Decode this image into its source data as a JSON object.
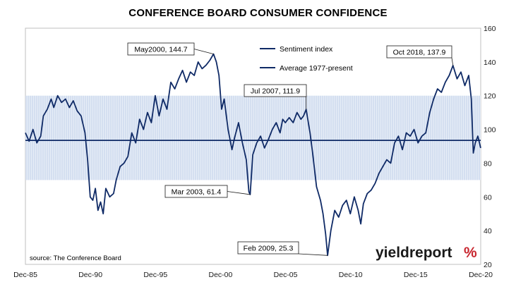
{
  "chart_data": {
    "type": "line",
    "title": "CONFERENCE BOARD CONSUMER CONFIDENCE",
    "x_tick_labels": [
      "Dec-85",
      "Dec-90",
      "Dec-95",
      "Dec-00",
      "Dec-05",
      "Dec-10",
      "Dec-15",
      "Dec-20"
    ],
    "y_tick_labels": [
      "20",
      "40",
      "60",
      "80",
      "100",
      "120",
      "140",
      "160"
    ],
    "xlim": [
      1985.92,
      2020.92
    ],
    "ylim": [
      20,
      160
    ],
    "grid": false,
    "legend_position": "top-center",
    "series": [
      {
        "name": "Sentiment index",
        "color": "#0f2a66",
        "x": [
          1985.92,
          1986.2,
          1986.5,
          1986.8,
          1987.1,
          1987.3,
          1987.6,
          1987.9,
          1988.1,
          1988.4,
          1988.7,
          1989.0,
          1989.3,
          1989.6,
          1989.9,
          1990.2,
          1990.5,
          1990.7,
          1990.9,
          1991.1,
          1991.3,
          1991.5,
          1991.7,
          1991.9,
          1992.1,
          1992.4,
          1992.7,
          1992.9,
          1993.2,
          1993.5,
          1993.8,
          1994.1,
          1994.4,
          1994.7,
          1995.0,
          1995.3,
          1995.6,
          1995.9,
          1996.2,
          1996.5,
          1996.8,
          1997.1,
          1997.4,
          1997.7,
          1998.0,
          1998.3,
          1998.6,
          1998.9,
          1999.2,
          1999.5,
          1999.8,
          2000.1,
          2000.38,
          2000.6,
          2000.8,
          2001.0,
          2001.2,
          2001.5,
          2001.8,
          2002.0,
          2002.3,
          2002.6,
          2002.9,
          2003.1,
          2003.2,
          2003.4,
          2003.7,
          2004.0,
          2004.3,
          2004.6,
          2004.9,
          2005.2,
          2005.5,
          2005.7,
          2005.9,
          2006.2,
          2006.5,
          2006.8,
          2007.1,
          2007.3,
          2007.5,
          2007.8,
          2008.0,
          2008.3,
          2008.6,
          2008.8,
          2009.0,
          2009.15,
          2009.4,
          2009.7,
          2010.0,
          2010.3,
          2010.6,
          2010.9,
          2011.2,
          2011.5,
          2011.7,
          2011.9,
          2012.2,
          2012.5,
          2012.8,
          2013.1,
          2013.4,
          2013.7,
          2014.0,
          2014.3,
          2014.6,
          2014.9,
          2015.2,
          2015.5,
          2015.8,
          2016.1,
          2016.4,
          2016.7,
          2017.0,
          2017.3,
          2017.6,
          2017.9,
          2018.2,
          2018.5,
          2018.79,
          2019.1,
          2019.4,
          2019.7,
          2020.0,
          2020.2,
          2020.35,
          2020.5,
          2020.7,
          2020.92
        ],
        "values": [
          98,
          93,
          100,
          92,
          96,
          108,
          112,
          118,
          113,
          120,
          116,
          118,
          113,
          117,
          111,
          108,
          98,
          82,
          60,
          58,
          65,
          52,
          57,
          50,
          65,
          60,
          62,
          70,
          78,
          80,
          84,
          98,
          92,
          106,
          100,
          110,
          104,
          120,
          108,
          118,
          112,
          128,
          124,
          130,
          135,
          128,
          134,
          132,
          140,
          136,
          138,
          141,
          144.7,
          140,
          132,
          112,
          118,
          100,
          88,
          95,
          104,
          92,
          82,
          63,
          61.4,
          85,
          92,
          96,
          89,
          94,
          100,
          104,
          98,
          106,
          104,
          107,
          104,
          110,
          106,
          108,
          111.9,
          98,
          86,
          66,
          58,
          50,
          38,
          25.3,
          40,
          52,
          48,
          55,
          58,
          50,
          60,
          52,
          44,
          56,
          62,
          64,
          68,
          74,
          78,
          82,
          80,
          92,
          96,
          88,
          98,
          96,
          100,
          92,
          96,
          98,
          110,
          118,
          124,
          122,
          128,
          132,
          137.9,
          130,
          134,
          126,
          132,
          118,
          86,
          92,
          96,
          89
        ],
        "annotations": [
          {
            "label": "May2000, 144.7",
            "x": 2000.38,
            "y": 144.7
          },
          {
            "label": "Mar 2003, 61.4",
            "x": 2003.2,
            "y": 61.4
          },
          {
            "label": "Jul 2007, 111.9",
            "x": 2007.5,
            "y": 111.9
          },
          {
            "label": "Feb 2009, 25.3",
            "x": 2009.15,
            "y": 25.3
          },
          {
            "label": "Oct 2018, 137.9",
            "x": 2018.79,
            "y": 137.9
          }
        ]
      },
      {
        "name": "Average 1977-present",
        "color": "#0f2a66",
        "values": [
          93.5
        ]
      }
    ],
    "band": {
      "lower": 70,
      "upper": 120
    }
  },
  "footer": {
    "source": "source: The Conference Board",
    "logo_text": "yieldreport",
    "logo_symbol": "%",
    "logo_color": "#c8262f"
  }
}
